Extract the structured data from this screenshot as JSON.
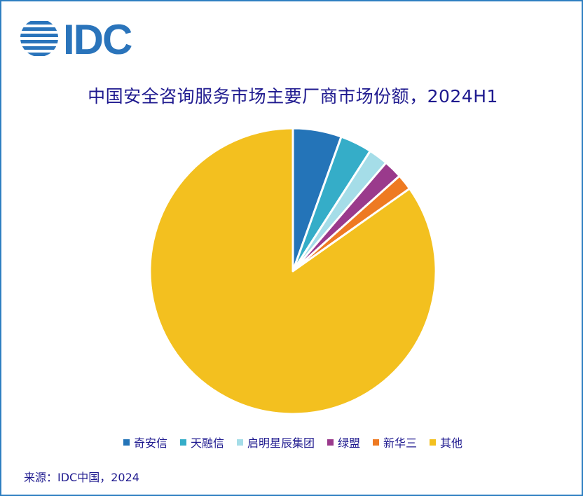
{
  "logo": {
    "text": "IDC",
    "color": "#2a74bb"
  },
  "chart_data": {
    "type": "pie",
    "title": "中国安全咨询服务市场主要厂商市场份额，2024H1",
    "legend_position": "bottom",
    "slices": [
      {
        "label": "奇安信",
        "value": 5.5,
        "color": "#2474b8"
      },
      {
        "label": "天融信",
        "value": 3.6,
        "color": "#35adc8"
      },
      {
        "label": "启明星辰集团",
        "value": 2.2,
        "color": "#a5dde8"
      },
      {
        "label": "绿盟",
        "value": 2.1,
        "color": "#9a3a8c"
      },
      {
        "label": "新华三",
        "value": 1.8,
        "color": "#ee7a22"
      },
      {
        "label": "其他",
        "value": 84.8,
        "color": "#f3c01f"
      }
    ]
  },
  "source": "来源：IDC中国，2024"
}
